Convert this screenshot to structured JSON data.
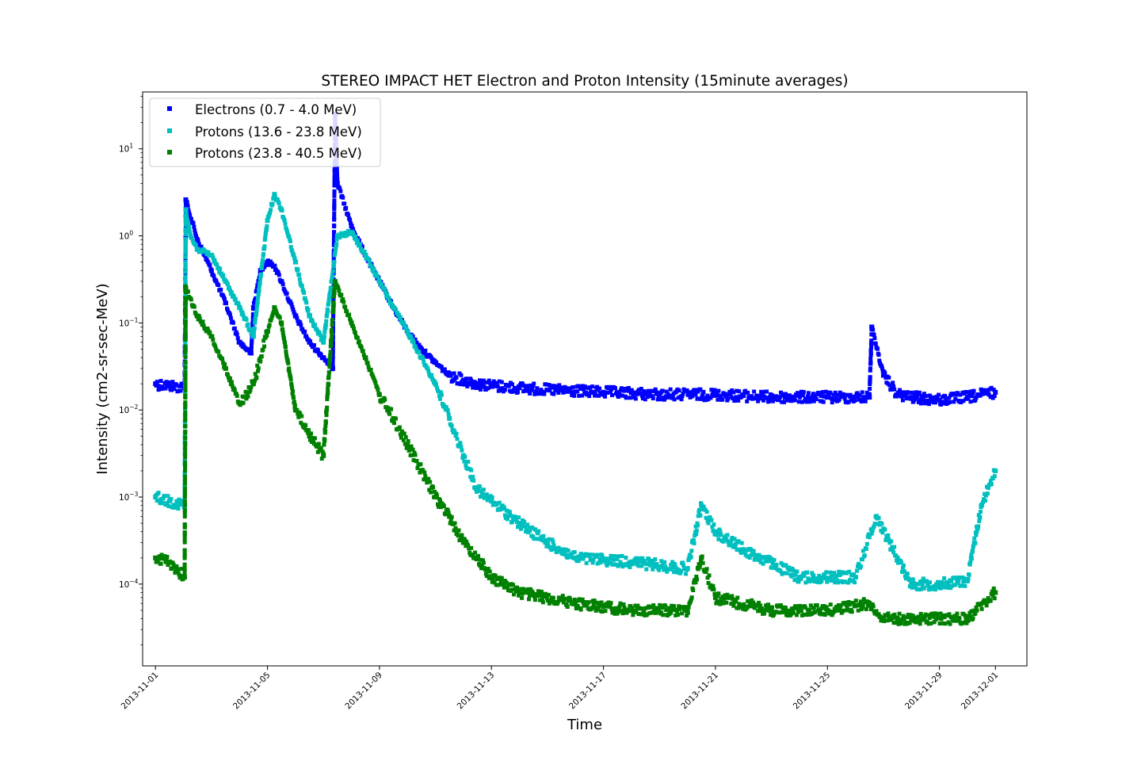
{
  "chart_data": {
    "type": "scatter",
    "title": "STEREO IMPACT HET Electron and Proton Intensity (15minute averages)",
    "xlabel": "Time",
    "ylabel": "Intensity (cm2-sr-sec-MeV)",
    "x_range": [
      "2013-10-31T13:00",
      "2013-12-02T03:00"
    ],
    "ylim": [
      1.15e-05,
      45
    ],
    "yscale": "log",
    "grid": false,
    "legend_position": "top-left",
    "x_ticks": [
      "2013-11-01",
      "2013-11-05",
      "2013-11-09",
      "2013-11-13",
      "2013-11-17",
      "2013-11-21",
      "2013-11-25",
      "2013-11-29",
      "2013-12-01"
    ],
    "y_ticks": [
      {
        "value": 0.0001,
        "base": "10",
        "exp": "−4"
      },
      {
        "value": 0.001,
        "base": "10",
        "exp": "−3"
      },
      {
        "value": 0.01,
        "base": "10",
        "exp": "−2"
      },
      {
        "value": 0.1,
        "base": "10",
        "exp": "−1"
      },
      {
        "value": 1,
        "base": "10",
        "exp": "0"
      },
      {
        "value": 10,
        "base": "10",
        "exp": "1"
      }
    ],
    "series": [
      {
        "name": "Electrons (0.7 - 4.0 MeV)",
        "color": "#0000ff",
        "marker": "square",
        "x": [
          "2013-11-01T00:00",
          "2013-11-01T12:00",
          "2013-11-02T01:00",
          "2013-11-02T02:00",
          "2013-11-02T12:00",
          "2013-11-03T00:00",
          "2013-11-03T12:00",
          "2013-11-04T00:00",
          "2013-11-04T10:00",
          "2013-11-04T12:00",
          "2013-11-04T18:00",
          "2013-11-05T00:00",
          "2013-11-05T06:00",
          "2013-11-05T12:00",
          "2013-11-06T00:00",
          "2013-11-06T12:00",
          "2013-11-07T00:00",
          "2013-11-07T08:00",
          "2013-11-07T10:00",
          "2013-11-07T12:00",
          "2013-11-08T00:00",
          "2013-11-08T12:00",
          "2013-11-09T00:00",
          "2013-11-09T12:00",
          "2013-11-10T00:00",
          "2013-11-10T12:00",
          "2013-11-11T00:00",
          "2013-11-11T12:00",
          "2013-11-12T00:00",
          "2013-11-12T12:00",
          "2013-11-13T00:00",
          "2013-11-14T00:00",
          "2013-11-15T00:00",
          "2013-11-17T00:00",
          "2013-11-19T00:00",
          "2013-11-21T00:00",
          "2013-11-23T00:00",
          "2013-11-25T00:00",
          "2013-11-26T12:00",
          "2013-11-26T14:00",
          "2013-11-27T00:00",
          "2013-11-27T12:00",
          "2013-11-28T00:00",
          "2013-11-29T00:00",
          "2013-11-30T00:00",
          "2013-12-01T00:00"
        ],
        "y": [
          0.02,
          0.019,
          0.018,
          2.6,
          0.9,
          0.4,
          0.17,
          0.06,
          0.045,
          0.15,
          0.4,
          0.5,
          0.45,
          0.3,
          0.12,
          0.06,
          0.04,
          0.03,
          25,
          4,
          1.3,
          0.6,
          0.3,
          0.15,
          0.08,
          0.05,
          0.035,
          0.025,
          0.022,
          0.02,
          0.019,
          0.018,
          0.017,
          0.016,
          0.015,
          0.015,
          0.014,
          0.014,
          0.014,
          0.09,
          0.025,
          0.015,
          0.014,
          0.013,
          0.014,
          0.016
        ]
      },
      {
        "name": "Protons (13.6 - 23.8 MeV)",
        "color": "#00bfbf",
        "marker": "square",
        "x": [
          "2013-11-01T00:00",
          "2013-11-01T12:00",
          "2013-11-02T01:00",
          "2013-11-02T02:00",
          "2013-11-02T06:00",
          "2013-11-02T12:00",
          "2013-11-03T00:00",
          "2013-11-03T12:00",
          "2013-11-04T00:00",
          "2013-11-04T12:00",
          "2013-11-05T00:00",
          "2013-11-05T06:00",
          "2013-11-05T12:00",
          "2013-11-06T00:00",
          "2013-11-06T12:00",
          "2013-11-07T00:00",
          "2013-11-07T12:00",
          "2013-11-08T00:00",
          "2013-11-08T12:00",
          "2013-11-09T00:00",
          "2013-11-09T12:00",
          "2013-11-10T00:00",
          "2013-11-10T12:00",
          "2013-11-11T00:00",
          "2013-11-11T12:00",
          "2013-11-12T00:00",
          "2013-11-12T12:00",
          "2013-11-13T00:00",
          "2013-11-14T00:00",
          "2013-11-15T00:00",
          "2013-11-16T00:00",
          "2013-11-18T00:00",
          "2013-11-20T00:00",
          "2013-11-20T12:00",
          "2013-11-21T00:00",
          "2013-11-22T00:00",
          "2013-11-24T00:00",
          "2013-11-26T00:00",
          "2013-11-26T18:00",
          "2013-11-27T12:00",
          "2013-11-28T00:00",
          "2013-11-29T00:00",
          "2013-11-30T00:00",
          "2013-11-30T12:00",
          "2013-12-01T00:00"
        ],
        "y": [
          0.001,
          0.0009,
          0.0008,
          2.0,
          1.0,
          0.7,
          0.6,
          0.3,
          0.15,
          0.07,
          1.5,
          3.0,
          2.0,
          0.5,
          0.12,
          0.06,
          1.0,
          1.1,
          0.6,
          0.3,
          0.15,
          0.08,
          0.04,
          0.02,
          0.008,
          0.003,
          0.0012,
          0.0009,
          0.0005,
          0.0003,
          0.0002,
          0.00018,
          0.00015,
          0.0008,
          0.0004,
          0.00025,
          0.00012,
          0.00012,
          0.0006,
          0.0002,
          0.0001,
          0.0001,
          0.00011,
          0.0008,
          0.002
        ]
      },
      {
        "name": "Protons (23.8 - 40.5 MeV)",
        "color": "#008000",
        "marker": "square",
        "x": [
          "2013-11-01T00:00",
          "2013-11-01T12:00",
          "2013-11-02T01:00",
          "2013-11-02T02:00",
          "2013-11-02T12:00",
          "2013-11-03T00:00",
          "2013-11-03T12:00",
          "2013-11-04T00:00",
          "2013-11-04T12:00",
          "2013-11-05T00:00",
          "2013-11-05T06:00",
          "2013-11-05T12:00",
          "2013-11-06T00:00",
          "2013-11-06T12:00",
          "2013-11-07T00:00",
          "2013-11-07T10:00",
          "2013-11-08T00:00",
          "2013-11-08T12:00",
          "2013-11-09T00:00",
          "2013-11-09T12:00",
          "2013-11-10T00:00",
          "2013-11-10T12:00",
          "2013-11-11T00:00",
          "2013-11-11T12:00",
          "2013-11-12T00:00",
          "2013-11-12T12:00",
          "2013-11-13T00:00",
          "2013-11-14T00:00",
          "2013-11-16T00:00",
          "2013-11-18T00:00",
          "2013-11-20T00:00",
          "2013-11-20T12:00",
          "2013-11-21T00:00",
          "2013-11-23T00:00",
          "2013-11-25T00:00",
          "2013-11-26T12:00",
          "2013-11-27T00:00",
          "2013-11-28T00:00",
          "2013-11-30T00:00",
          "2013-12-01T00:00"
        ],
        "y": [
          0.0002,
          0.00018,
          0.00012,
          0.25,
          0.12,
          0.07,
          0.03,
          0.012,
          0.02,
          0.08,
          0.15,
          0.1,
          0.01,
          0.005,
          0.003,
          0.3,
          0.1,
          0.04,
          0.015,
          0.008,
          0.004,
          0.002,
          0.001,
          0.0006,
          0.0003,
          0.0002,
          0.00012,
          8e-05,
          6e-05,
          5e-05,
          5e-05,
          0.0002,
          7e-05,
          5e-05,
          5e-05,
          6e-05,
          4e-05,
          4e-05,
          4e-05,
          8e-05
        ]
      }
    ]
  }
}
